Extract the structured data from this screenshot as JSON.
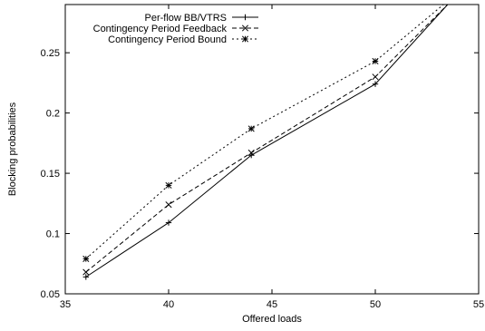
{
  "chart_data": {
    "type": "line",
    "title": "",
    "xlabel": "Offered loads",
    "ylabel": "Blocking probabilities",
    "xlim": [
      35,
      55
    ],
    "ylim": [
      0.05,
      0.29
    ],
    "xticks": [
      35,
      40,
      45,
      50,
      55
    ],
    "yticks": [
      0.05,
      0.1,
      0.15,
      0.2,
      0.25
    ],
    "ytick_labels": [
      "0.05",
      "0.1",
      "0.15",
      "0.2",
      "0.25"
    ],
    "xtick_labels": [
      "35",
      "40",
      "45",
      "50",
      "55"
    ],
    "grid": false,
    "legend_position": "top-left",
    "series": [
      {
        "name": "Per-flow BB/VTRS",
        "dash": "solid",
        "marker": "plus",
        "color": "#000000",
        "x": [
          36,
          40,
          44,
          50,
          53.5
        ],
        "y": [
          0.064,
          0.109,
          0.165,
          0.224,
          0.29
        ]
      },
      {
        "name": "Contingency Period Feedback",
        "dash": "dashed",
        "marker": "x",
        "color": "#000000",
        "x": [
          36,
          40,
          44,
          50,
          53.5
        ],
        "y": [
          0.068,
          0.124,
          0.167,
          0.23,
          0.29
        ]
      },
      {
        "name": "Contingency Period Bound",
        "dash": "dotted",
        "marker": "star",
        "color": "#000000",
        "x": [
          36,
          40,
          44,
          50,
          53.3
        ],
        "y": [
          0.079,
          0.14,
          0.187,
          0.243,
          0.29
        ]
      }
    ]
  }
}
